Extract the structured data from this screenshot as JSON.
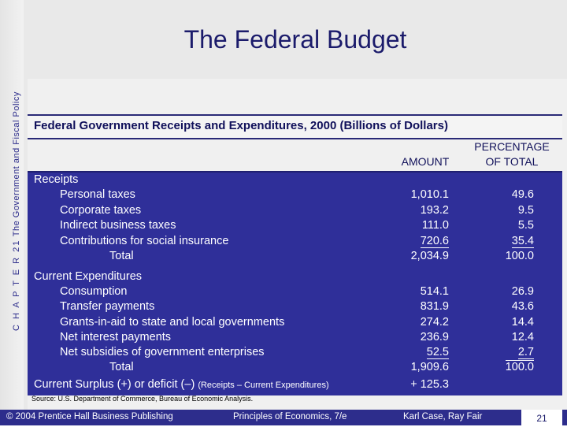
{
  "side_caption": {
    "chapter": "C H A P T E R 21",
    "topic": "The Government and Fiscal Policy"
  },
  "title": "The Federal Budget",
  "table_title": "Federal Government Receipts and Expenditures, 2000 (Billions of Dollars)",
  "columns": {
    "amount": "AMOUNT",
    "percent_line1": "PERCENTAGE",
    "percent_line2": "OF TOTAL"
  },
  "receipts": {
    "heading": "Receipts",
    "rows": [
      {
        "label": "Personal taxes",
        "amount": "1,010.1",
        "percent": "49.6"
      },
      {
        "label": "Corporate taxes",
        "amount": "193.2",
        "percent": "9.5"
      },
      {
        "label": "Indirect business taxes",
        "amount": "111.0",
        "percent": "5.5"
      },
      {
        "label": "Contributions for social insurance",
        "amount": "720.6",
        "percent": "35.4"
      }
    ],
    "total": {
      "label": "Total",
      "amount": "2,034.9",
      "percent": "100.0"
    }
  },
  "expenditures": {
    "heading": "Current Expenditures",
    "rows": [
      {
        "label": "Consumption",
        "amount": "514.1",
        "percent": "26.9"
      },
      {
        "label": "Transfer payments",
        "amount": "831.9",
        "percent": "43.6"
      },
      {
        "label": "Grants-in-aid to state and local governments",
        "amount": "274.2",
        "percent": "14.4"
      },
      {
        "label": "Net interest payments",
        "amount": "236.9",
        "percent": "12.4"
      },
      {
        "label": "Net subsidies of government enterprises",
        "amount": "52.5",
        "percent": "2.7"
      }
    ],
    "total": {
      "label": "Total",
      "amount": "1,909.6",
      "percent": "100.0"
    }
  },
  "surplus": {
    "label": "Current Surplus (+) or deficit (–)",
    "note": "(Receipts – Current Expenditures)",
    "amount": "+ 125.3"
  },
  "source": "Source:  U.S. Department of Commerce, Bureau of Economic Analysis.",
  "footer": {
    "copyright": "© 2004 Prentice Hall Business Publishing",
    "book": "Principles of Economics, 7/e",
    "authors": "Karl Case, Ray Fair",
    "page": "21"
  }
}
